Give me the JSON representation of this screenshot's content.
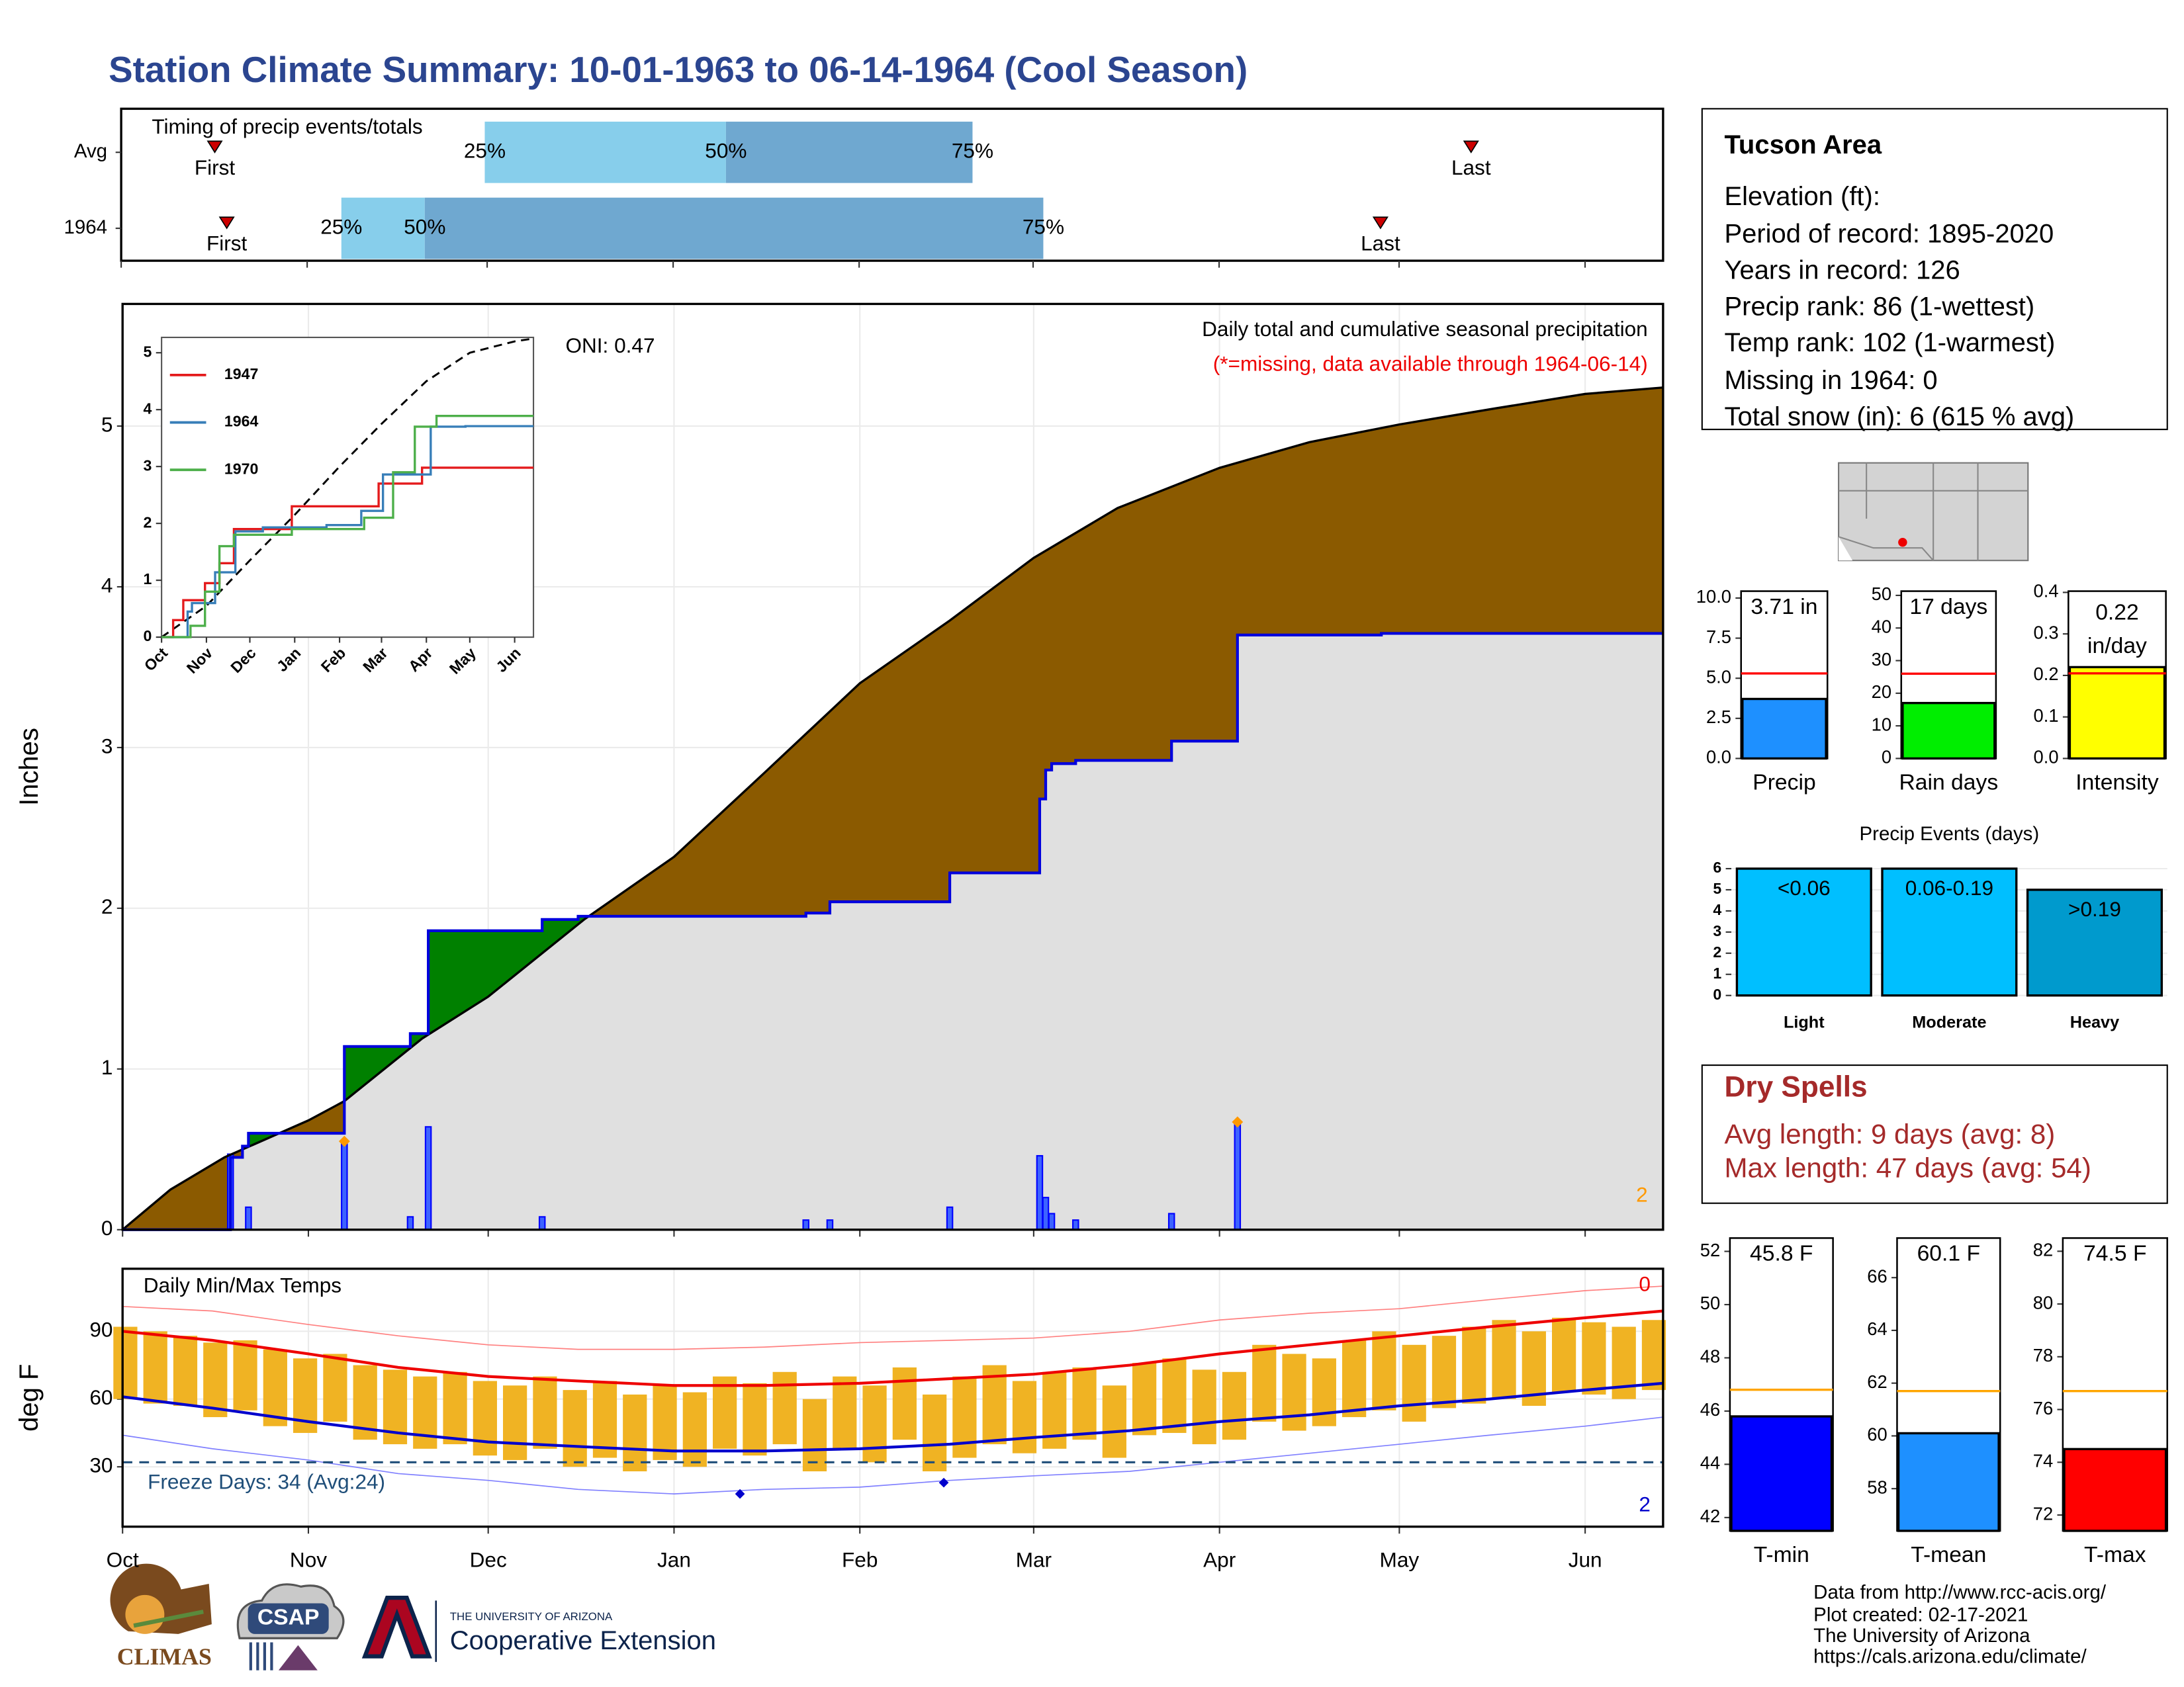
{
  "title": "Station Climate Summary: 10-01-1963 to 06-14-1964 (Cool Season)",
  "chart_data": [
    {
      "type": "timeline",
      "title": "Timing of precip events/totals",
      "categories": [
        "Avg",
        "1964"
      ],
      "xlim": [
        0,
        257
      ],
      "xticks": [
        0,
        31,
        61,
        92,
        123,
        152,
        183,
        213,
        244
      ],
      "first": [
        15.6,
        17.6
      ],
      "p25": [
        60.6,
        36.7
      ],
      "p50": [
        100.8,
        50.6
      ],
      "p75": [
        141.9,
        153.7
      ],
      "last": [
        225,
        209.9
      ],
      "quantile_labels": [
        "25%",
        "50%",
        "75%"
      ],
      "first_label": "First",
      "last_label": "Last",
      "colors": [
        "#87ceeb",
        "#6fa8d0"
      ],
      "marker_color": "#cc0000"
    },
    {
      "type": "cumulative",
      "ylabel": "Inches",
      "annotations": [
        "Daily total and cumulative seasonal precipitation",
        "(*=missing, data available through 1964-06-14)",
        "ONI: 0.47",
        "2"
      ],
      "xlim": [
        0,
        257
      ],
      "xticks": [
        0,
        31,
        61,
        92,
        123,
        152,
        183,
        213,
        244
      ],
      "ylim": [
        0,
        5.76
      ],
      "yticks": [
        0,
        1,
        2,
        3,
        4,
        5
      ],
      "grid": true,
      "series": [
        {
          "color": "#000000",
          "x": [
            0,
            8,
            17,
            31,
            37,
            50,
            61,
            77,
            92,
            107,
            123,
            138,
            152,
            166,
            183,
            198,
            213,
            229,
            244,
            257
          ],
          "values": [
            0,
            0.25,
            0.45,
            0.68,
            0.8,
            1.19,
            1.45,
            1.93,
            2.32,
            2.84,
            3.4,
            3.79,
            4.18,
            4.49,
            4.74,
            4.9,
            5.01,
            5.11,
            5.2,
            5.24
          ]
        },
        {
          "color": "#0000dd",
          "x": [
            0,
            18,
            20,
            21,
            37,
            48,
            51,
            70,
            76,
            114,
            118,
            138,
            153,
            154,
            155,
            159,
            175,
            186,
            210,
            257
          ],
          "values": [
            0,
            0.45,
            0.52,
            0.6,
            1.14,
            1.22,
            1.86,
            1.93,
            1.95,
            1.97,
            2.04,
            2.22,
            2.68,
            2.86,
            2.9,
            2.92,
            3.04,
            3.7,
            3.71,
            3.71
          ]
        }
      ],
      "above_color": "#008000",
      "below_color": "#8b5a00",
      "base_color": "#e0e0e0",
      "daily_x": [
        18,
        21,
        37,
        48,
        51,
        70,
        114,
        118,
        138,
        153,
        154,
        155,
        159,
        175,
        186
      ],
      "daily_values": [
        0.47,
        0.14,
        0.55,
        0.08,
        0.64,
        0.08,
        0.06,
        0.06,
        0.14,
        0.46,
        0.2,
        0.1,
        0.06,
        0.1,
        0.66
      ],
      "bar_color": "#0000ff",
      "snow": {
        "x": [
          37,
          186
        ],
        "values": [
          0.55,
          0.67
        ],
        "color": "#ff9900"
      }
    },
    {
      "type": "line",
      "xlim": [
        0,
        257
      ],
      "xticks": [
        {
          "value": 0,
          "label": "Oct"
        },
        {
          "value": 31,
          "label": "Nov"
        },
        {
          "value": 61,
          "label": "Dec"
        },
        {
          "value": 92,
          "label": "Jan"
        },
        {
          "value": 123,
          "label": "Feb"
        },
        {
          "value": 152,
          "label": "Mar"
        },
        {
          "value": 183,
          "label": "Apr"
        },
        {
          "value": 213,
          "label": "May"
        },
        {
          "value": 244,
          "label": "Jun"
        }
      ],
      "ylim": [
        0,
        5.27
      ],
      "yticks": [
        0,
        1,
        2,
        3,
        4,
        5
      ],
      "series": [
        {
          "name": "1947",
          "color": "#e41a1c",
          "x": [
            0,
            8,
            15,
            30,
            40,
            50,
            90,
            125,
            150,
            180,
            257
          ],
          "values": [
            0,
            0.3,
            0.65,
            0.95,
            1.3,
            1.9,
            2.3,
            2.3,
            2.7,
            2.98,
            2.98
          ]
        },
        {
          "name": "1964",
          "color": "#377eb8",
          "x": [
            0,
            18,
            21,
            37,
            51,
            70,
            114,
            138,
            153,
            186,
            210,
            257
          ],
          "values": [
            0,
            0.45,
            0.6,
            1.14,
            1.86,
            1.93,
            1.97,
            2.22,
            2.86,
            3.7,
            3.71,
            3.71
          ]
        },
        {
          "name": "1970",
          "color": "#4daf4a",
          "x": [
            0,
            20,
            30,
            40,
            50,
            90,
            140,
            160,
            175,
            190,
            257
          ],
          "values": [
            0,
            0.2,
            0.8,
            1.6,
            1.8,
            1.9,
            2.1,
            2.9,
            3.7,
            3.89,
            3.89
          ]
        }
      ],
      "average": {
        "color": "#000000",
        "x": [
          0,
          31,
          61,
          92,
          123,
          152,
          183,
          213,
          244,
          257
        ],
        "values": [
          0,
          0.55,
          1.35,
          2.15,
          3.0,
          3.75,
          4.5,
          5.0,
          5.2,
          5.25
        ]
      }
    },
    {
      "type": "range",
      "title": "Daily Min/Max Temps",
      "ylabel": "deg F",
      "annotations": [
        "Freeze Days: 34 (Avg:24)",
        "0",
        "2"
      ],
      "xlim": [
        0,
        257
      ],
      "xticks": [
        {
          "value": 0,
          "label": "Oct"
        },
        {
          "value": 31,
          "label": "Nov"
        },
        {
          "value": 61,
          "label": "Dec"
        },
        {
          "value": 92,
          "label": "Jan"
        },
        {
          "value": 123,
          "label": "Feb"
        },
        {
          "value": 152,
          "label": "Mar"
        },
        {
          "value": 183,
          "label": "Apr"
        },
        {
          "value": 213,
          "label": "May"
        },
        {
          "value": 244,
          "label": "Jun"
        }
      ],
      "ylim": [
        3.5,
        117.7
      ],
      "yticks": [
        30,
        60,
        90
      ],
      "grid": true,
      "x": [
        0,
        5,
        10,
        15,
        20,
        25,
        30,
        35,
        40,
        45,
        50,
        55,
        60,
        65,
        70,
        75,
        80,
        85,
        90,
        95,
        100,
        105,
        110,
        115,
        120,
        125,
        130,
        135,
        140,
        145,
        150,
        155,
        160,
        165,
        170,
        175,
        180,
        185,
        190,
        195,
        200,
        205,
        210,
        215,
        220,
        225,
        230,
        235,
        240,
        245,
        250,
        255
      ],
      "max": [
        92,
        90,
        88,
        85,
        86,
        82,
        78,
        80,
        75,
        73,
        70,
        72,
        68,
        66,
        70,
        64,
        68,
        62,
        66,
        63,
        70,
        67,
        72,
        60,
        70,
        66,
        74,
        62,
        70,
        75,
        68,
        72,
        74,
        66,
        76,
        78,
        73,
        72,
        84,
        80,
        78,
        86,
        90,
        84,
        88,
        92,
        95,
        90,
        96,
        94,
        92,
        95
      ],
      "min": [
        60,
        58,
        57,
        52,
        55,
        48,
        45,
        50,
        42,
        40,
        38,
        40,
        35,
        33,
        38,
        30,
        34,
        28,
        33,
        30,
        38,
        35,
        40,
        28,
        38,
        32,
        42,
        28,
        34,
        40,
        36,
        38,
        42,
        34,
        44,
        45,
        40,
        42,
        50,
        46,
        48,
        52,
        55,
        50,
        56,
        58,
        60,
        57,
        63,
        62,
        60,
        64
      ],
      "bar_color": "#f0b323",
      "avg_max": {
        "color": "#ee0000",
        "x": [
          0,
          15,
          31,
          46,
          61,
          76,
          92,
          107,
          123,
          138,
          152,
          168,
          183,
          198,
          213,
          228,
          244,
          257
        ],
        "values": [
          90,
          86,
          80,
          74,
          70,
          68,
          66,
          66,
          67,
          69,
          71,
          75,
          80,
          84,
          88,
          92,
          96,
          99
        ]
      },
      "avg_min": {
        "color": "#0000cc",
        "x": [
          0,
          15,
          31,
          46,
          61,
          76,
          92,
          107,
          123,
          138,
          152,
          168,
          183,
          198,
          213,
          228,
          244,
          257
        ],
        "values": [
          61,
          56,
          50,
          45,
          41,
          39,
          37,
          37,
          38,
          40,
          43,
          46,
          50,
          53,
          57,
          60,
          64,
          67
        ]
      },
      "rec_max": {
        "color": "#ff8080",
        "x": [
          0,
          15,
          31,
          46,
          61,
          76,
          92,
          107,
          123,
          138,
          152,
          168,
          183,
          198,
          213,
          228,
          244,
          257
        ],
        "values": [
          101,
          99,
          93,
          88,
          84,
          82,
          82,
          83,
          85,
          86,
          87,
          90,
          95,
          98,
          100,
          104,
          108,
          110
        ]
      },
      "rec_min": {
        "color": "#8080ff",
        "x": [
          0,
          15,
          31,
          46,
          61,
          76,
          92,
          107,
          123,
          138,
          152,
          168,
          183,
          198,
          213,
          228,
          244,
          257
        ],
        "values": [
          44,
          38,
          33,
          27,
          24,
          20,
          18,
          20,
          21,
          24,
          26,
          28,
          32,
          36,
          40,
          44,
          48,
          52
        ]
      },
      "freeze_line": 32,
      "freeze_color": "#1f4e79",
      "record_lows": {
        "color": "#0000cc",
        "x": [
          103,
          137
        ],
        "values": [
          18,
          23
        ]
      }
    },
    {
      "type": "bar",
      "categories": [
        "Precip"
      ],
      "values": [
        3.71
      ],
      "value_labels": [
        "3.71 in"
      ],
      "average": 5.3,
      "ylim": [
        0,
        10.43
      ],
      "yticks": [
        {
          "value": 0,
          "label": "0.0"
        },
        2.5,
        {
          "value": 5,
          "label": "5.0"
        },
        7.5,
        {
          "value": 10,
          "label": "10.0"
        }
      ],
      "colors": [
        "#1e90ff"
      ],
      "avg_color": "#ff0000"
    },
    {
      "type": "bar",
      "categories": [
        "Rain days"
      ],
      "values": [
        17
      ],
      "value_labels": [
        "17 days"
      ],
      "average": 26,
      "ylim": [
        0,
        51.3
      ],
      "yticks": [
        0,
        10,
        20,
        30,
        40,
        50
      ],
      "colors": [
        "#00ee00"
      ],
      "avg_color": "#ff0000"
    },
    {
      "type": "bar",
      "categories": [
        "Intensity"
      ],
      "values": [
        0.22
      ],
      "value_labels": [
        "0.22 in/day"
      ],
      "average": 0.205,
      "ylim": [
        0,
        0.403
      ],
      "yticks": [
        {
          "value": 0,
          "label": "0.0"
        },
        0.1,
        0.2,
        0.3,
        0.4
      ],
      "colors": [
        "#ffff00"
      ],
      "avg_color": "#ff0000"
    },
    {
      "type": "bar",
      "title": "Precip Events (days)",
      "categories": [
        "Light",
        "Moderate",
        "Heavy"
      ],
      "values": [
        6,
        6,
        5
      ],
      "bar_labels": [
        "<0.06",
        "0.06-0.19",
        ">0.19"
      ],
      "ylim": [
        0,
        6.2
      ],
      "yticks": [
        0,
        1,
        2,
        3,
        4,
        5,
        6
      ],
      "grid": true,
      "colors": [
        "#00bfff",
        "#00bfff",
        "#009acd"
      ]
    },
    {
      "type": "bar",
      "categories": [
        "T-min"
      ],
      "values": [
        45.8
      ],
      "value_labels": [
        "45.8 F"
      ],
      "average": 46.8,
      "ylim": [
        41.5,
        52.5
      ],
      "yticks": [
        42,
        44,
        46,
        48,
        50,
        52
      ],
      "colors": [
        "#0000ff"
      ],
      "avg_color": "#ffa500"
    },
    {
      "type": "bar",
      "categories": [
        "T-mean"
      ],
      "values": [
        60.1
      ],
      "value_labels": [
        "60.1 F"
      ],
      "average": 61.7,
      "ylim": [
        56.4,
        67.5
      ],
      "yticks": [
        58,
        60,
        62,
        64,
        66
      ],
      "colors": [
        "#1e90ff"
      ],
      "avg_color": "#ffa500"
    },
    {
      "type": "bar",
      "categories": [
        "T-max"
      ],
      "values": [
        74.5
      ],
      "value_labels": [
        "74.5 F"
      ],
      "average": 76.7,
      "ylim": [
        71.4,
        82.5
      ],
      "yticks": [
        72,
        74,
        76,
        78,
        80,
        82
      ],
      "colors": [
        "#ff0000"
      ],
      "avg_color": "#ffa500"
    }
  ],
  "info": {
    "title": "Tucson Area",
    "lines": [
      "Elevation (ft):",
      "Period of record: 1895-2020",
      "Years in record: 126",
      "Precip rank: 86 (1-wettest)",
      "Temp rank: 102 (1-warmest)",
      "Missing in 1964: 0",
      "Total snow (in): 6 (615 % avg)"
    ]
  },
  "dry_spells": {
    "title": "Dry Spells",
    "lines": [
      "Avg length: 9 days (avg: 8)",
      "Max length: 47 days (avg: 54)"
    ]
  },
  "footer": {
    "logos": [
      "CLIMAS",
      "CSAP",
      "THE UNIVERSITY OF ARIZONA",
      "Cooperative Extension"
    ],
    "credits": [
      "Data from http://www.rcc-acis.org/",
      "Plot created: 02-17-2021",
      "The University of Arizona",
      "https://cals.arizona.edu/climate/"
    ]
  }
}
